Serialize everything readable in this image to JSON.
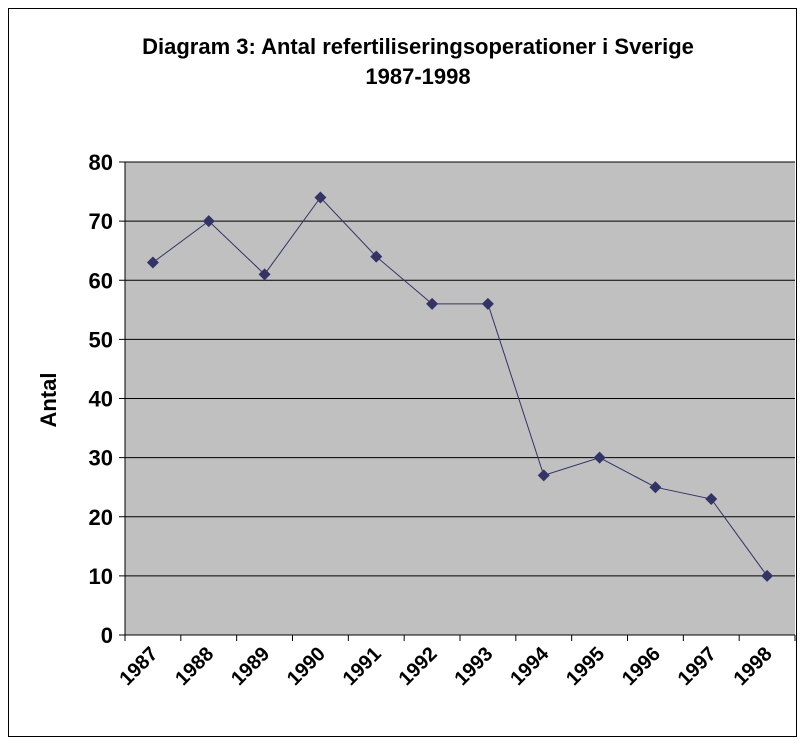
{
  "chart_data": {
    "type": "line",
    "title": "Diagram 3: Antal refertiliseringsoperationer i Sverige 1987-1998",
    "y_label": "Antal",
    "categories": [
      "1987",
      "1988",
      "1989",
      "1990",
      "1991",
      "1992",
      "1993",
      "1994",
      "1995",
      "1996",
      "1997",
      "1998"
    ],
    "series": [
      {
        "color": "#333366",
        "values": [
          63,
          70,
          61,
          74,
          64,
          56,
          56,
          27,
          30,
          25,
          23,
          10
        ]
      }
    ],
    "ylim": [
      0,
      80
    ],
    "yticks": [
      0,
      10,
      20,
      30,
      40,
      50,
      60,
      70,
      80
    ],
    "grid": true,
    "plot_background": "#c0c0c0"
  }
}
